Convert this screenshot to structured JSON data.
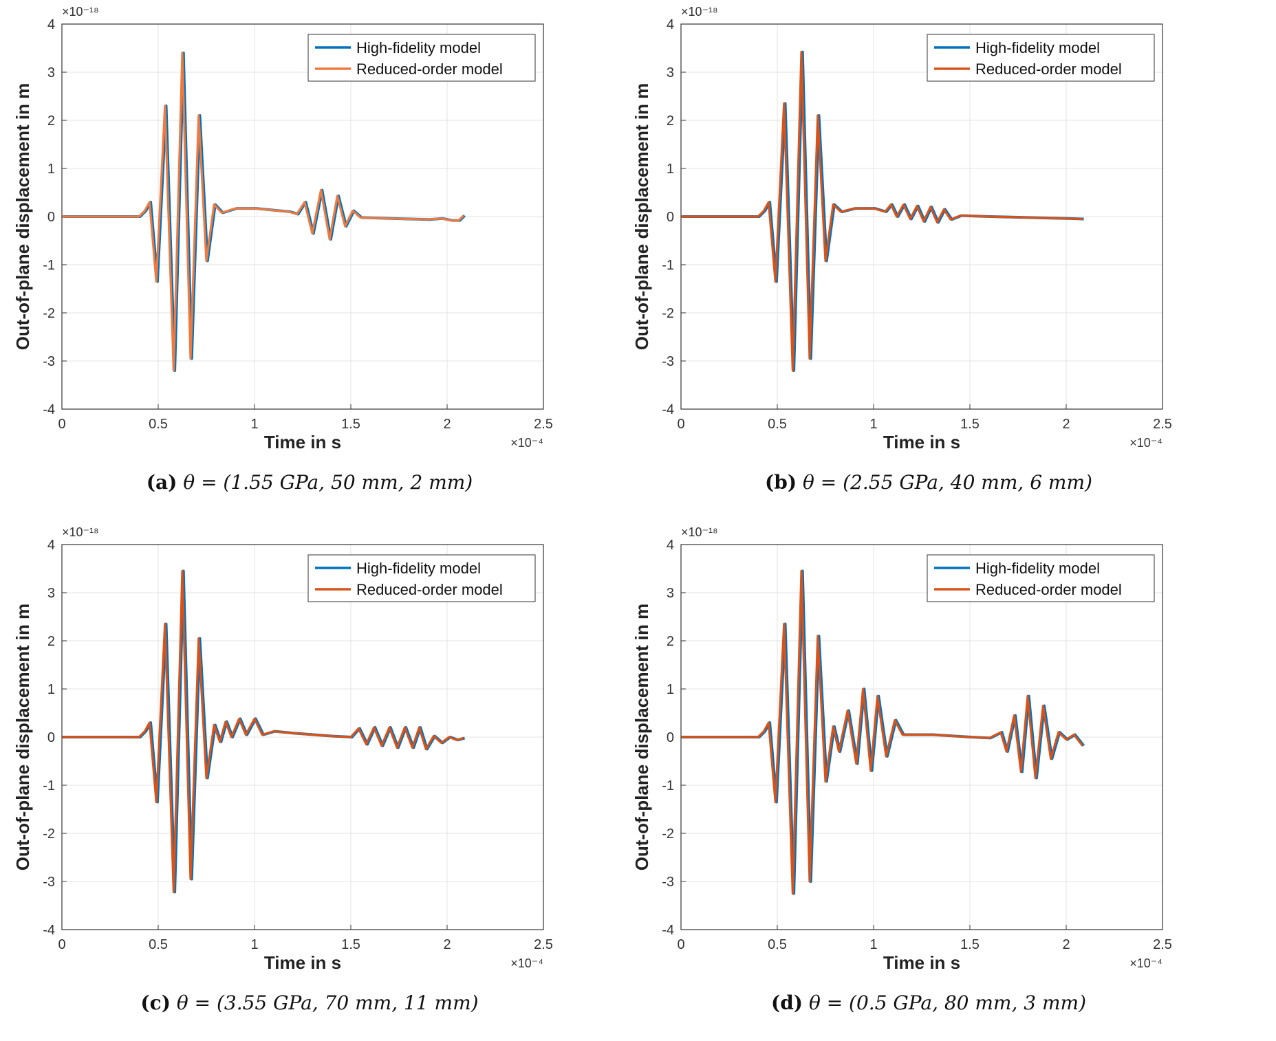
{
  "chart_data": [
    {
      "type": "line",
      "panel_label": "(a)",
      "caption_param": "θ = (1.55 GPa, 50 mm, 2 mm)",
      "xlabel": "Time in s",
      "ylabel": "Out-of-plane displacement in m",
      "x_exponent": "×10⁻⁴",
      "y_exponent": "×10⁻¹⁸",
      "xlim": [
        0,
        2.5
      ],
      "ylim": [
        -4,
        4
      ],
      "xticks": [
        "0",
        "0.5",
        "1",
        "1.5",
        "2",
        "2.5"
      ],
      "yticks": [
        "4",
        "3",
        "2",
        "1",
        "0",
        "-1",
        "-2",
        "-3",
        "-4"
      ],
      "grid": true,
      "legend_position": "top-right",
      "series": [
        {
          "name": "High-fidelity model",
          "color": "#0072BD"
        },
        {
          "name": "Reduced-order model",
          "color": "#F07A3E"
        }
      ],
      "signal": {
        "t": [
          0,
          0.4,
          0.43,
          0.455,
          0.49,
          0.535,
          0.58,
          0.625,
          0.668,
          0.71,
          0.75,
          0.79,
          0.83,
          0.9,
          1.0,
          1.1,
          1.18,
          1.22,
          1.26,
          1.3,
          1.345,
          1.39,
          1.43,
          1.47,
          1.51,
          1.55,
          1.7,
          1.9,
          1.97,
          2.02,
          2.06,
          2.085
        ],
        "v": [
          0,
          0,
          0.12,
          0.3,
          -1.35,
          2.3,
          -3.2,
          3.4,
          -2.95,
          2.1,
          -0.92,
          0.25,
          0.08,
          0.17,
          0.17,
          0.13,
          0.1,
          0.05,
          0.3,
          -0.35,
          0.55,
          -0.47,
          0.43,
          -0.2,
          0.12,
          -0.02,
          -0.04,
          -0.06,
          -0.04,
          -0.08,
          -0.08,
          0.02
        ]
      }
    },
    {
      "type": "line",
      "panel_label": "(b)",
      "caption_param": "θ = (2.55 GPa, 40 mm, 6 mm)",
      "xlabel": "Time in s",
      "ylabel": "Out-of-plane displacement in m",
      "x_exponent": "×10⁻⁴",
      "y_exponent": "×10⁻¹⁸",
      "xlim": [
        0,
        2.5
      ],
      "ylim": [
        -4,
        4
      ],
      "xticks": [
        "0",
        "0.5",
        "1",
        "1.5",
        "2",
        "2.5"
      ],
      "yticks": [
        "4",
        "3",
        "2",
        "1",
        "0",
        "-1",
        "-2",
        "-3",
        "-4"
      ],
      "grid": true,
      "legend_position": "top-right",
      "series": [
        {
          "name": "High-fidelity model",
          "color": "#0072BD"
        },
        {
          "name": "Reduced-order model",
          "color": "#D95319"
        }
      ],
      "signal": {
        "t": [
          0,
          0.4,
          0.43,
          0.455,
          0.49,
          0.535,
          0.58,
          0.625,
          0.668,
          0.71,
          0.75,
          0.79,
          0.83,
          0.9,
          1.0,
          1.06,
          1.09,
          1.12,
          1.155,
          1.19,
          1.225,
          1.26,
          1.295,
          1.33,
          1.365,
          1.4,
          1.45,
          1.6,
          1.8,
          2.0,
          2.085
        ],
        "v": [
          0,
          0,
          0.12,
          0.3,
          -1.35,
          2.35,
          -3.2,
          3.42,
          -2.95,
          2.1,
          -0.92,
          0.25,
          0.1,
          0.17,
          0.17,
          0.1,
          0.25,
          0.0,
          0.25,
          -0.05,
          0.22,
          -0.1,
          0.2,
          -0.12,
          0.15,
          -0.06,
          0.02,
          0.0,
          -0.02,
          -0.04,
          -0.05
        ]
      }
    },
    {
      "type": "line",
      "panel_label": "(c)",
      "caption_param": "θ = (3.55 GPa, 70 mm, 11 mm)",
      "xlabel": "Time in s",
      "ylabel": "Out-of-plane displacement in m",
      "x_exponent": "×10⁻⁴",
      "y_exponent": "×10⁻¹⁸",
      "xlim": [
        0,
        2.5
      ],
      "ylim": [
        -4,
        4
      ],
      "xticks": [
        "0",
        "0.5",
        "1",
        "1.5",
        "2",
        "2.5"
      ],
      "yticks": [
        "4",
        "3",
        "2",
        "1",
        "0",
        "-1",
        "-2",
        "-3",
        "-4"
      ],
      "grid": true,
      "legend_position": "top-right",
      "series": [
        {
          "name": "High-fidelity model",
          "color": "#0072BD"
        },
        {
          "name": "Reduced-order model",
          "color": "#D95319"
        }
      ],
      "signal": {
        "t": [
          0,
          0.4,
          0.43,
          0.455,
          0.49,
          0.535,
          0.58,
          0.625,
          0.668,
          0.71,
          0.75,
          0.79,
          0.82,
          0.85,
          0.88,
          0.92,
          0.955,
          1.0,
          1.04,
          1.1,
          1.2,
          1.3,
          1.4,
          1.5,
          1.54,
          1.58,
          1.62,
          1.66,
          1.7,
          1.74,
          1.78,
          1.82,
          1.855,
          1.89,
          1.93,
          1.97,
          2.01,
          2.05,
          2.085
        ],
        "v": [
          0,
          0,
          0.12,
          0.3,
          -1.35,
          2.35,
          -3.22,
          3.45,
          -2.95,
          2.05,
          -0.85,
          0.25,
          -0.1,
          0.32,
          0.0,
          0.38,
          0.05,
          0.38,
          0.05,
          0.12,
          0.08,
          0.05,
          0.02,
          0.0,
          0.18,
          -0.15,
          0.2,
          -0.18,
          0.2,
          -0.22,
          0.2,
          -0.22,
          0.2,
          -0.25,
          0.02,
          -0.12,
          0.0,
          -0.06,
          -0.02
        ]
      }
    },
    {
      "type": "line",
      "panel_label": "(d)",
      "caption_param": "θ = (0.5 GPa, 80 mm, 3 mm)",
      "xlabel": "Time in s",
      "ylabel": "Out-of-plane displacement in m",
      "x_exponent": "×10⁻⁴",
      "y_exponent": "×10⁻¹⁸",
      "xlim": [
        0,
        2.5
      ],
      "ylim": [
        -4,
        4
      ],
      "xticks": [
        "0",
        "0.5",
        "1",
        "1.5",
        "2",
        "2.5"
      ],
      "yticks": [
        "4",
        "3",
        "2",
        "1",
        "0",
        "-1",
        "-2",
        "-3",
        "-4"
      ],
      "grid": true,
      "legend_position": "top-right",
      "series": [
        {
          "name": "High-fidelity model",
          "color": "#0072BD"
        },
        {
          "name": "Reduced-order model",
          "color": "#D95319"
        }
      ],
      "signal": {
        "t": [
          0,
          0.4,
          0.43,
          0.455,
          0.49,
          0.535,
          0.58,
          0.625,
          0.668,
          0.71,
          0.75,
          0.79,
          0.82,
          0.865,
          0.91,
          0.945,
          0.985,
          1.02,
          1.065,
          1.11,
          1.15,
          1.3,
          1.5,
          1.6,
          1.66,
          1.69,
          1.73,
          1.765,
          1.8,
          1.84,
          1.88,
          1.92,
          1.96,
          2.0,
          2.04,
          2.085
        ],
        "v": [
          0,
          0,
          0.12,
          0.3,
          -1.35,
          2.35,
          -3.25,
          3.45,
          -3.0,
          2.1,
          -0.92,
          0.22,
          -0.3,
          0.55,
          -0.55,
          1.0,
          -0.7,
          0.85,
          -0.4,
          0.35,
          0.05,
          0.05,
          0.0,
          -0.02,
          0.1,
          -0.3,
          0.45,
          -0.72,
          0.85,
          -0.85,
          0.65,
          -0.45,
          0.1,
          -0.05,
          0.05,
          -0.18
        ]
      }
    }
  ]
}
